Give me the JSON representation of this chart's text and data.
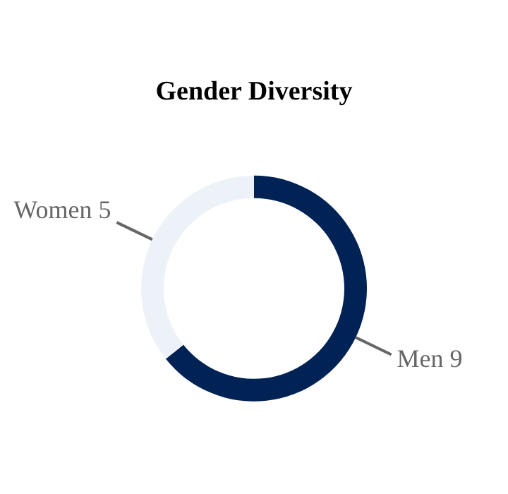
{
  "chart_data": {
    "type": "donut",
    "title": "Gender Diversity",
    "categories": [
      "Men",
      "Women"
    ],
    "values": [
      9,
      5
    ],
    "colors": [
      "#002255",
      "#edf2f9"
    ],
    "data_labels": true,
    "legend": false
  }
}
